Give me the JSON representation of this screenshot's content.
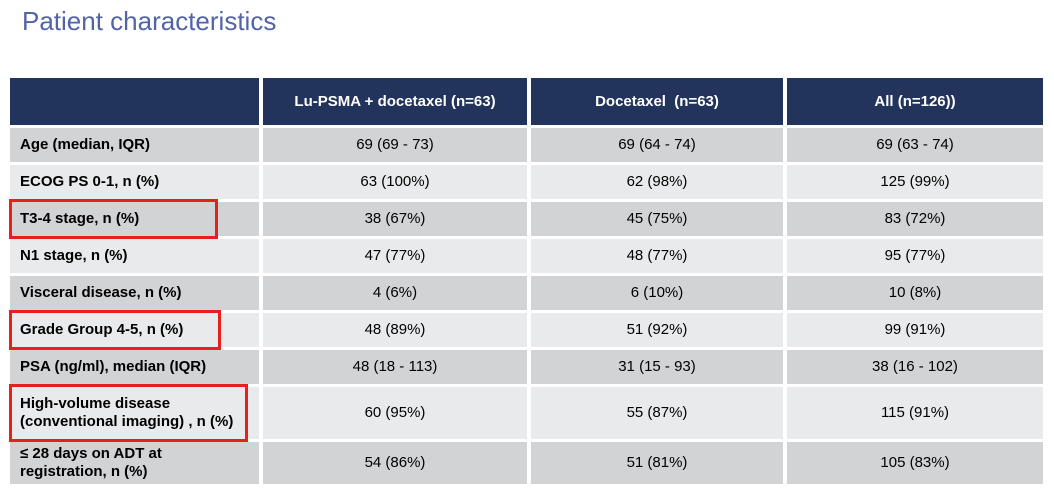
{
  "page_title": "Patient characteristics",
  "colors": {
    "title_color": "#5363A8",
    "header_bg": "#23345C",
    "row_dark": "#D2D3D5",
    "row_light": "#E9EAEB",
    "highlight_red": "#E7201B"
  },
  "table": {
    "columns": [
      "",
      "Lu-PSMA + docetaxel (n=63)",
      "Docetaxel  (n=63)",
      "All (n=126))"
    ],
    "rows": [
      {
        "label": "Age (median, IQR)",
        "values": [
          "69 (69 - 73)",
          "69 (64 - 74)",
          "69 (63 - 74)"
        ],
        "highlighted": false
      },
      {
        "label": "ECOG PS 0-1, n (%)",
        "values": [
          "63 (100%)",
          "62 (98%)",
          "125 (99%)"
        ],
        "highlighted": false
      },
      {
        "label": "T3-4 stage, n (%)",
        "values": [
          "38 (67%)",
          "45 (75%)",
          "83 (72%)"
        ],
        "highlighted": true
      },
      {
        "label": "N1 stage, n (%)",
        "values": [
          "47 (77%)",
          "48 (77%)",
          "95 (77%)"
        ],
        "highlighted": false
      },
      {
        "label": "Visceral disease, n (%)",
        "values": [
          "4 (6%)",
          "6 (10%)",
          "10 (8%)"
        ],
        "highlighted": false
      },
      {
        "label": "Grade Group 4-5, n (%)",
        "values": [
          "48 (89%)",
          "51 (92%)",
          "99 (91%)"
        ],
        "highlighted": true
      },
      {
        "label": "PSA (ng/ml), median (IQR)",
        "values": [
          "48 (18 - 113)",
          "31 (15 - 93)",
          "38 (16 - 102)"
        ],
        "highlighted": false
      },
      {
        "label": "High-volume disease (conventional imaging) , n (%)",
        "values": [
          "60 (95%)",
          "55 (87%)",
          "115 (91%)"
        ],
        "highlighted": true
      },
      {
        "label": "≤ 28 days on ADT at registration, n (%)",
        "values": [
          "54 (86%)",
          "51 (81%)",
          "105 (83%)"
        ],
        "highlighted": false
      }
    ]
  }
}
